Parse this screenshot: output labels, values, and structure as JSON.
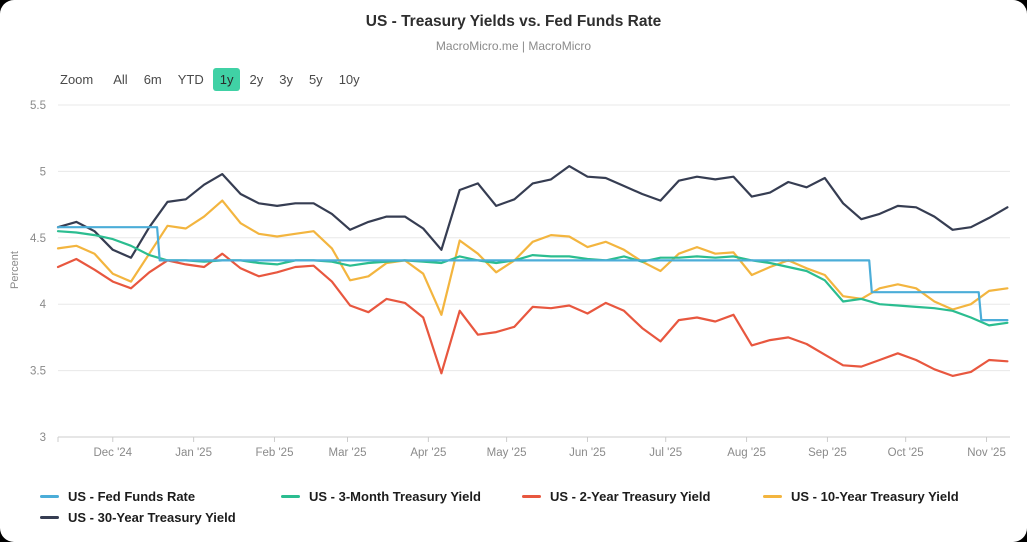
{
  "header": {
    "title": "US - Treasury Yields vs. Fed Funds Rate",
    "subtitle": "MacroMicro.me | MacroMicro"
  },
  "toolbar": {
    "zoom_label": "Zoom",
    "ranges": [
      "All",
      "6m",
      "YTD",
      "1y",
      "2y",
      "3y",
      "5y",
      "10y"
    ],
    "selected": "1y",
    "selected_bg": "#40d1a5"
  },
  "chart_data": {
    "type": "line",
    "title": "US - Treasury Yields vs. Fed Funds Rate",
    "xlabel": "",
    "ylabel": "Percent",
    "ylim": [
      3,
      5.5
    ],
    "yticks": [
      3,
      3.5,
      4,
      4.5,
      5,
      5.5
    ],
    "grid": true,
    "legend_position": "bottom",
    "x_range": [
      "2024-11-10",
      "2025-11-10"
    ],
    "x_ticks": [
      {
        "date": "2024-12-01",
        "label": "Dec '24"
      },
      {
        "date": "2025-01-01",
        "label": "Jan '25"
      },
      {
        "date": "2025-02-01",
        "label": "Feb '25"
      },
      {
        "date": "2025-03-01",
        "label": "Mar '25"
      },
      {
        "date": "2025-04-01",
        "label": "Apr '25"
      },
      {
        "date": "2025-05-01",
        "label": "May '25"
      },
      {
        "date": "2025-06-01",
        "label": "Jun '25"
      },
      {
        "date": "2025-07-01",
        "label": "Jul '25"
      },
      {
        "date": "2025-08-01",
        "label": "Aug '25"
      },
      {
        "date": "2025-09-01",
        "label": "Sep '25"
      },
      {
        "date": "2025-10-01",
        "label": "Oct '25"
      },
      {
        "date": "2025-11-01",
        "label": "Nov '25"
      }
    ],
    "dates": [
      "2024-11-10",
      "2024-11-17",
      "2024-11-24",
      "2024-12-01",
      "2024-12-08",
      "2024-12-15",
      "2024-12-22",
      "2024-12-29",
      "2025-01-05",
      "2025-01-12",
      "2025-01-19",
      "2025-01-26",
      "2025-02-02",
      "2025-02-09",
      "2025-02-16",
      "2025-02-23",
      "2025-03-02",
      "2025-03-09",
      "2025-03-16",
      "2025-03-23",
      "2025-03-30",
      "2025-04-06",
      "2025-04-13",
      "2025-04-20",
      "2025-04-27",
      "2025-05-04",
      "2025-05-11",
      "2025-05-18",
      "2025-05-25",
      "2025-06-01",
      "2025-06-08",
      "2025-06-15",
      "2025-06-22",
      "2025-06-29",
      "2025-07-06",
      "2025-07-13",
      "2025-07-20",
      "2025-07-27",
      "2025-08-03",
      "2025-08-10",
      "2025-08-17",
      "2025-08-24",
      "2025-08-31",
      "2025-09-07",
      "2025-09-14",
      "2025-09-21",
      "2025-09-28",
      "2025-10-05",
      "2025-10-12",
      "2025-10-19",
      "2025-10-26",
      "2025-11-02",
      "2025-11-09"
    ],
    "series": [
      {
        "name": "US - Fed Funds Rate",
        "color": "#4badd8",
        "style": "step",
        "points": [
          [
            "2024-11-10",
            4.58
          ],
          [
            "2024-12-18",
            4.58
          ],
          [
            "2024-12-19",
            4.33
          ],
          [
            "2025-09-17",
            4.33
          ],
          [
            "2025-09-18",
            4.09
          ],
          [
            "2025-10-29",
            4.09
          ],
          [
            "2025-10-30",
            3.88
          ],
          [
            "2025-11-09",
            3.88
          ]
        ]
      },
      {
        "name": "US - 3-Month Treasury Yield",
        "color": "#2bbd90",
        "values": [
          4.55,
          4.54,
          4.52,
          4.49,
          4.44,
          4.37,
          4.33,
          4.33,
          4.32,
          4.33,
          4.33,
          4.31,
          4.3,
          4.33,
          4.33,
          4.32,
          4.29,
          4.31,
          4.32,
          4.33,
          4.32,
          4.31,
          4.36,
          4.33,
          4.31,
          4.33,
          4.37,
          4.36,
          4.36,
          4.34,
          4.33,
          4.36,
          4.32,
          4.35,
          4.35,
          4.36,
          4.35,
          4.36,
          4.33,
          4.31,
          4.28,
          4.25,
          4.18,
          4.02,
          4.04,
          4.0,
          3.99,
          3.98,
          3.97,
          3.95,
          3.9,
          3.84,
          3.86
        ]
      },
      {
        "name": "US - 2-Year Treasury Yield",
        "color": "#e8573f",
        "values": [
          4.28,
          4.34,
          4.26,
          4.17,
          4.12,
          4.24,
          4.33,
          4.3,
          4.28,
          4.38,
          4.27,
          4.21,
          4.24,
          4.28,
          4.29,
          4.17,
          3.99,
          3.94,
          4.04,
          4.01,
          3.9,
          3.48,
          3.95,
          3.77,
          3.79,
          3.83,
          3.98,
          3.97,
          3.99,
          3.93,
          4.01,
          3.95,
          3.82,
          3.72,
          3.88,
          3.9,
          3.87,
          3.92,
          3.69,
          3.73,
          3.75,
          3.7,
          3.62,
          3.54,
          3.53,
          3.58,
          3.63,
          3.58,
          3.51,
          3.46,
          3.49,
          3.58,
          3.57
        ]
      },
      {
        "name": "US - 10-Year Treasury Yield",
        "color": "#f3b53f",
        "values": [
          4.42,
          4.44,
          4.38,
          4.23,
          4.17,
          4.38,
          4.59,
          4.57,
          4.66,
          4.78,
          4.61,
          4.53,
          4.51,
          4.53,
          4.55,
          4.42,
          4.18,
          4.21,
          4.31,
          4.33,
          4.23,
          3.92,
          4.48,
          4.38,
          4.24,
          4.33,
          4.47,
          4.52,
          4.51,
          4.43,
          4.47,
          4.41,
          4.32,
          4.25,
          4.38,
          4.43,
          4.38,
          4.39,
          4.22,
          4.28,
          4.33,
          4.27,
          4.22,
          4.06,
          4.04,
          4.12,
          4.15,
          4.12,
          4.02,
          3.96,
          4.0,
          4.1,
          4.12
        ]
      },
      {
        "name": "US - 30-Year Treasury Yield",
        "color": "#363d52",
        "values": [
          4.58,
          4.62,
          4.55,
          4.41,
          4.35,
          4.58,
          4.77,
          4.79,
          4.9,
          4.98,
          4.83,
          4.76,
          4.74,
          4.76,
          4.76,
          4.68,
          4.56,
          4.62,
          4.66,
          4.66,
          4.57,
          4.41,
          4.86,
          4.91,
          4.74,
          4.79,
          4.91,
          4.94,
          5.04,
          4.96,
          4.95,
          4.89,
          4.83,
          4.78,
          4.93,
          4.96,
          4.94,
          4.96,
          4.81,
          4.84,
          4.92,
          4.88,
          4.95,
          4.76,
          4.64,
          4.68,
          4.74,
          4.73,
          4.66,
          4.56,
          4.58,
          4.65,
          4.73
        ]
      }
    ]
  }
}
